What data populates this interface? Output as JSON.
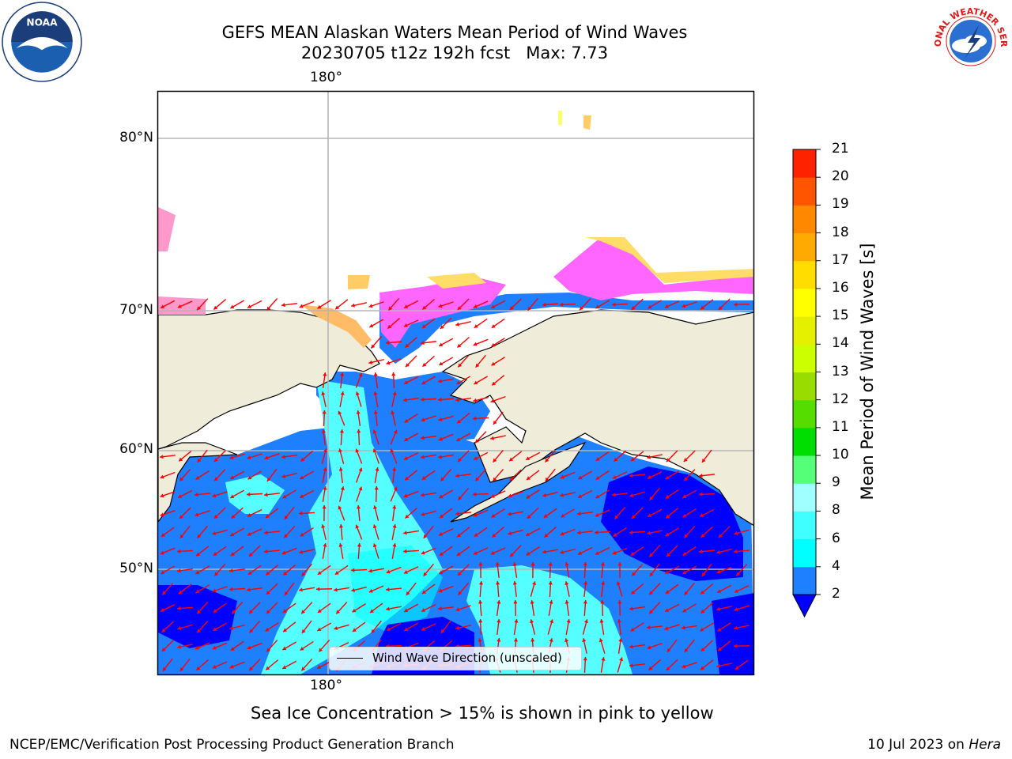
{
  "title": {
    "line1": "GEFS MEAN Alaskan Waters Mean Period of Wind Waves",
    "line2": "20230705 t12z 192h fcst   Max: 7.73"
  },
  "logos": {
    "left": "noaa-logo",
    "right": "national-weather-service-logo",
    "left_text": "NOAA",
    "right_text": "NATIONAL WEATHER SERVICE"
  },
  "map": {
    "lon_labels_top": [
      "180°"
    ],
    "lon_labels_bottom": [
      "180°"
    ],
    "lat_labels": [
      "80°N",
      "70°N",
      "60°N",
      "50°N"
    ],
    "land_color": "#efedda",
    "ocean_colors": {
      "2-4": "#1e7fff",
      "4-6": "#00ffff",
      "6-8": "#55ffff",
      "below-2": "#0000ff"
    },
    "ice_colors": [
      "#ff66ff",
      "#ff99cc",
      "#ffcc66",
      "#ffff66"
    ],
    "arrow_color": "#ff0000"
  },
  "colorbar": {
    "label": "Mean Period of Wind Waves [s]",
    "ticks": [
      "2",
      "4",
      "6",
      "8",
      "9",
      "10",
      "11",
      "12",
      "13",
      "14",
      "15",
      "16",
      "17",
      "18",
      "19",
      "20",
      "21"
    ],
    "colors": [
      "#1e7fff",
      "#00ffff",
      "#40ffff",
      "#a0ffff",
      "#55ff77",
      "#00dd00",
      "#55dd00",
      "#99dd00",
      "#ccff00",
      "#e5f000",
      "#ffff00",
      "#ffdd00",
      "#ffaa00",
      "#ff8800",
      "#ff5500",
      "#ff2200",
      "#ff0000"
    ],
    "under_color": "#0000ff"
  },
  "legend": {
    "label": "Wind Wave Direction (unscaled)"
  },
  "notes": {
    "ice": "Sea Ice Concentration > 15% is shown in pink to yellow",
    "footer_left": "NCEP/EMC/Verification Post Processing Product Generation Branch",
    "footer_date": "10 Jul 2023 on ",
    "footer_host": "Hera"
  }
}
